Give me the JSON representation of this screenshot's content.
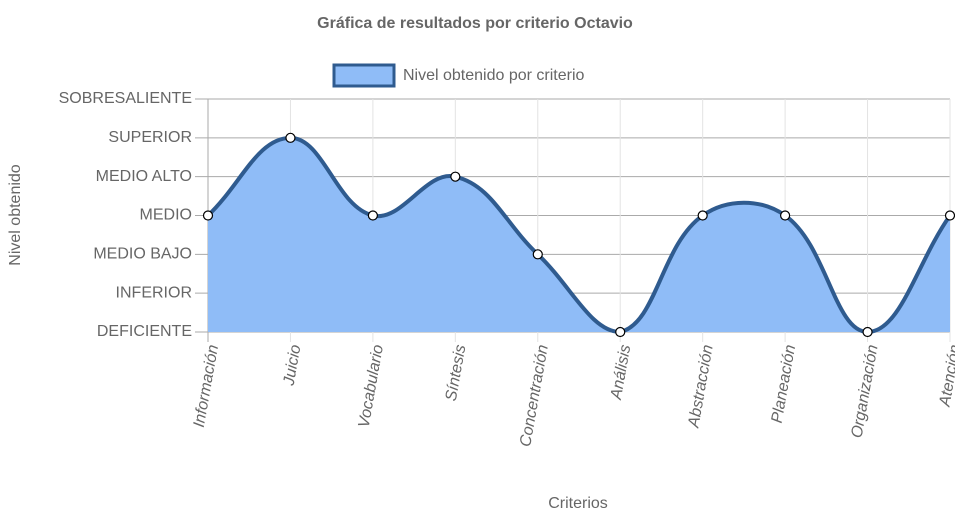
{
  "chart_data": {
    "type": "area",
    "title": "Gráfica de resultados por criterio Octavio",
    "x_label": "Criterios",
    "y_label": "Nivel obtenido",
    "categories": [
      "Información",
      "Juicio",
      "Vocabulario",
      "Síntesis",
      "Concentración",
      "Análisis",
      "Abstracción",
      "Planeación",
      "Organización",
      "Atención"
    ],
    "series": [
      {
        "name": "Nivel obtenido por criterio",
        "color": "#2f5b8f",
        "fill": "#8fbcf7",
        "values": [
          3,
          5,
          3,
          4,
          2,
          0,
          3,
          3,
          0,
          3
        ]
      }
    ],
    "ylim": [
      0,
      6
    ],
    "yticks": [
      {
        "value": 0,
        "label": "DEFICIENTE"
      },
      {
        "value": 1,
        "label": "INFERIOR"
      },
      {
        "value": 2,
        "label": "MEDIO BAJO"
      },
      {
        "value": 3,
        "label": "MEDIO"
      },
      {
        "value": 4,
        "label": "MEDIO ALTO"
      },
      {
        "value": 5,
        "label": "SUPERIOR"
      },
      {
        "value": 6,
        "label": "SOBRESALIENTE"
      }
    ],
    "grid": true,
    "legend": "top"
  }
}
